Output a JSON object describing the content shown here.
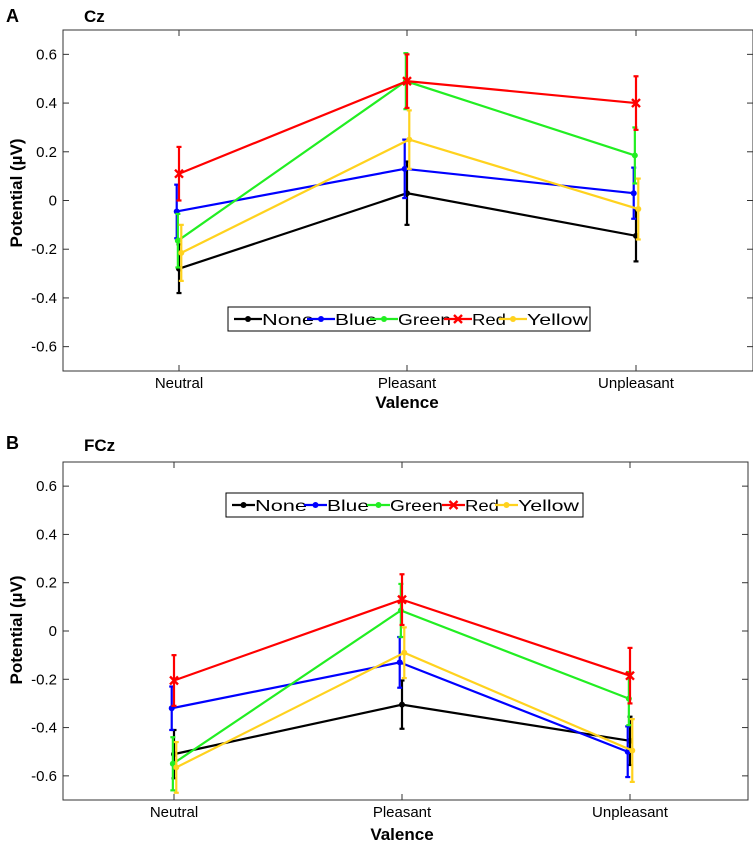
{
  "chart_data": [
    {
      "panel_label": "A",
      "title": "Cz",
      "type": "line",
      "xlabel": "Valence",
      "ylabel": "Potential (µV)",
      "categories": [
        "Neutral",
        "Pleasant",
        "Unpleasant"
      ],
      "ylim": [
        -0.7,
        0.7
      ],
      "yticks": [
        0.6,
        0.4,
        0.2,
        0,
        -0.2,
        -0.4,
        -0.6
      ],
      "ytick_labels": [
        "0.6",
        "0.4",
        "0.2",
        "0",
        "-0.2",
        "-0.4",
        "-0.6"
      ],
      "legend_position": "bottom-center",
      "series": [
        {
          "name": "None",
          "color": "#000000",
          "marker": "dot",
          "values": [
            -0.28,
            0.03,
            -0.145
          ],
          "errors": [
            0.1,
            0.13,
            0.105
          ],
          "offset": 0.0
        },
        {
          "name": "Blue",
          "color": "#0000ff",
          "marker": "dot",
          "values": [
            -0.045,
            0.13,
            0.03
          ],
          "errors": [
            0.11,
            0.12,
            0.105
          ],
          "offset": -0.05
        },
        {
          "name": "Green",
          "color": "#22ee22",
          "marker": "dot",
          "values": [
            -0.165,
            0.49,
            0.185
          ],
          "errors": [
            0.11,
            0.115,
            0.115
          ],
          "offset": -0.025
        },
        {
          "name": "Red",
          "color": "#ff0000",
          "marker": "x",
          "values": [
            0.11,
            0.49,
            0.4
          ],
          "errors": [
            0.11,
            0.11,
            0.11
          ],
          "offset": 0.0
        },
        {
          "name": "Yellow",
          "color": "#ffd21e",
          "marker": "dot",
          "values": [
            -0.215,
            0.25,
            -0.035
          ],
          "errors": [
            0.115,
            0.12,
            0.125
          ],
          "offset": 0.05
        }
      ]
    },
    {
      "panel_label": "B",
      "title": "FCz",
      "type": "line",
      "xlabel": "Valence",
      "ylabel": "Potential (µV)",
      "categories": [
        "Neutral",
        "Pleasant",
        "Unpleasant"
      ],
      "ylim": [
        -0.7,
        0.7
      ],
      "yticks": [
        0.6,
        0.4,
        0.2,
        0,
        -0.2,
        -0.4,
        -0.6
      ],
      "ytick_labels": [
        "0.6",
        "0.4",
        "0.2",
        "0",
        "-0.2",
        "-0.4",
        "-0.6"
      ],
      "legend_position": "top-center",
      "series": [
        {
          "name": "None",
          "color": "#000000",
          "marker": "dot",
          "values": [
            -0.51,
            -0.305,
            -0.455
          ],
          "errors": [
            0.1,
            0.1,
            0.1
          ],
          "offset": 0.0
        },
        {
          "name": "Blue",
          "color": "#0000ff",
          "marker": "dot",
          "values": [
            -0.32,
            -0.13,
            -0.5
          ],
          "errors": [
            0.09,
            0.105,
            0.105
          ],
          "offset": -0.05
        },
        {
          "name": "Green",
          "color": "#22ee22",
          "marker": "dot",
          "values": [
            -0.55,
            0.085,
            -0.28
          ],
          "errors": [
            0.11,
            0.11,
            0.11
          ],
          "offset": -0.025
        },
        {
          "name": "Red",
          "color": "#ff0000",
          "marker": "x",
          "values": [
            -0.205,
            0.13,
            -0.185
          ],
          "errors": [
            0.105,
            0.105,
            0.115
          ],
          "offset": 0.0
        },
        {
          "name": "Yellow",
          "color": "#ffd21e",
          "marker": "dot",
          "values": [
            -0.565,
            -0.09,
            -0.495
          ],
          "errors": [
            0.105,
            0.105,
            0.13
          ],
          "offset": 0.05
        }
      ]
    }
  ]
}
